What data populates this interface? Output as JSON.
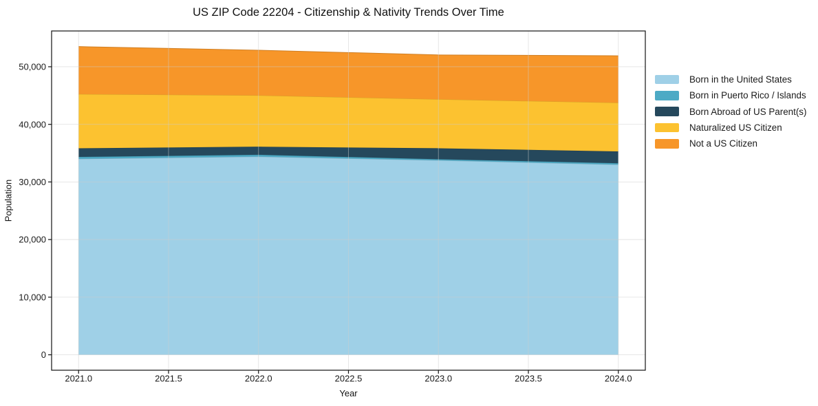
{
  "page": {
    "background": "#ffffff",
    "text_color": "#1a1a1a",
    "grid_color": "#cccccc",
    "frame_color": "#111111"
  },
  "chart_data": {
    "type": "area",
    "stacked": true,
    "title": "US ZIP Code 22204 - Citizenship & Nativity Trends Over Time",
    "xlabel": "Year",
    "ylabel": "Population",
    "x": [
      2021,
      2022,
      2023,
      2024
    ],
    "series": [
      {
        "name": "Born in the United States",
        "color": "#9fd0e7",
        "values": [
          34000,
          34400,
          33750,
          33000
        ]
      },
      {
        "name": "Born in Puerto Rico / Islands",
        "color": "#4daac5",
        "values": [
          350,
          320,
          200,
          250
        ]
      },
      {
        "name": "Born Abroad of US Parent(s)",
        "color": "#25485c",
        "values": [
          1500,
          1400,
          1900,
          2050
        ]
      },
      {
        "name": "Naturalized US Citizen",
        "color": "#fcc230",
        "values": [
          9400,
          8900,
          8500,
          8450
        ]
      },
      {
        "name": "Not a US Citizen",
        "color": "#f79629",
        "values": [
          8250,
          7850,
          7700,
          8150
        ]
      }
    ],
    "totals": [
      53500,
      52870,
      52050,
      51900
    ],
    "xticks": {
      "values": [
        2021,
        2021.5,
        2022,
        2022.5,
        2023,
        2023.5,
        2024
      ],
      "labels": [
        "2021.0",
        "2021.5",
        "2022.0",
        "2022.5",
        "2023.0",
        "2023.5",
        "2024.0"
      ]
    },
    "yticks": {
      "values": [
        0,
        10000,
        20000,
        30000,
        40000,
        50000
      ],
      "labels": [
        "0",
        "10,000",
        "20,000",
        "30,000",
        "40,000",
        "50,000"
      ]
    },
    "xlim": [
      2020.85,
      2024.15
    ],
    "ylim": [
      -2680,
      56210
    ],
    "grid": true,
    "legend_position": "right-outside"
  }
}
